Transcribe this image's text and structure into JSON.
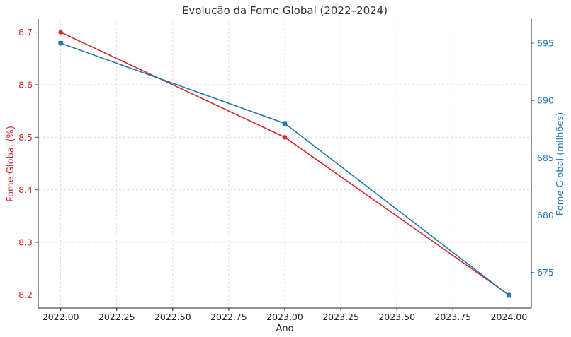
{
  "chart_data": {
    "type": "line",
    "title": "Evolução da Fome Global (2022–2024)",
    "xlabel": "Ano",
    "x": [
      2022,
      2023,
      2024
    ],
    "xlim": [
      2021.9,
      2024.1
    ],
    "xticks": [
      "2022.00",
      "2022.25",
      "2022.50",
      "2022.75",
      "2023.00",
      "2023.25",
      "2023.50",
      "2023.75",
      "2024.00"
    ],
    "grid": true,
    "left_axis": {
      "label": "Fome Global (%)",
      "color": "#d62728",
      "ylim": [
        8.175,
        8.725
      ],
      "ticks": [
        "8.2",
        "8.3",
        "8.4",
        "8.5",
        "8.6",
        "8.7"
      ]
    },
    "right_axis": {
      "label": "Fome Global (milhões)",
      "color": "#1f77b4",
      "ylim": [
        671.9,
        697.1
      ],
      "ticks": [
        "675",
        "680",
        "685",
        "690",
        "695"
      ]
    },
    "series": [
      {
        "axis": "left",
        "color": "#d62728",
        "marker": "circle",
        "values": [
          8.7,
          8.5,
          8.2
        ]
      },
      {
        "axis": "right",
        "color": "#1f77b4",
        "marker": "square",
        "values": [
          695,
          688,
          673
        ]
      }
    ]
  }
}
